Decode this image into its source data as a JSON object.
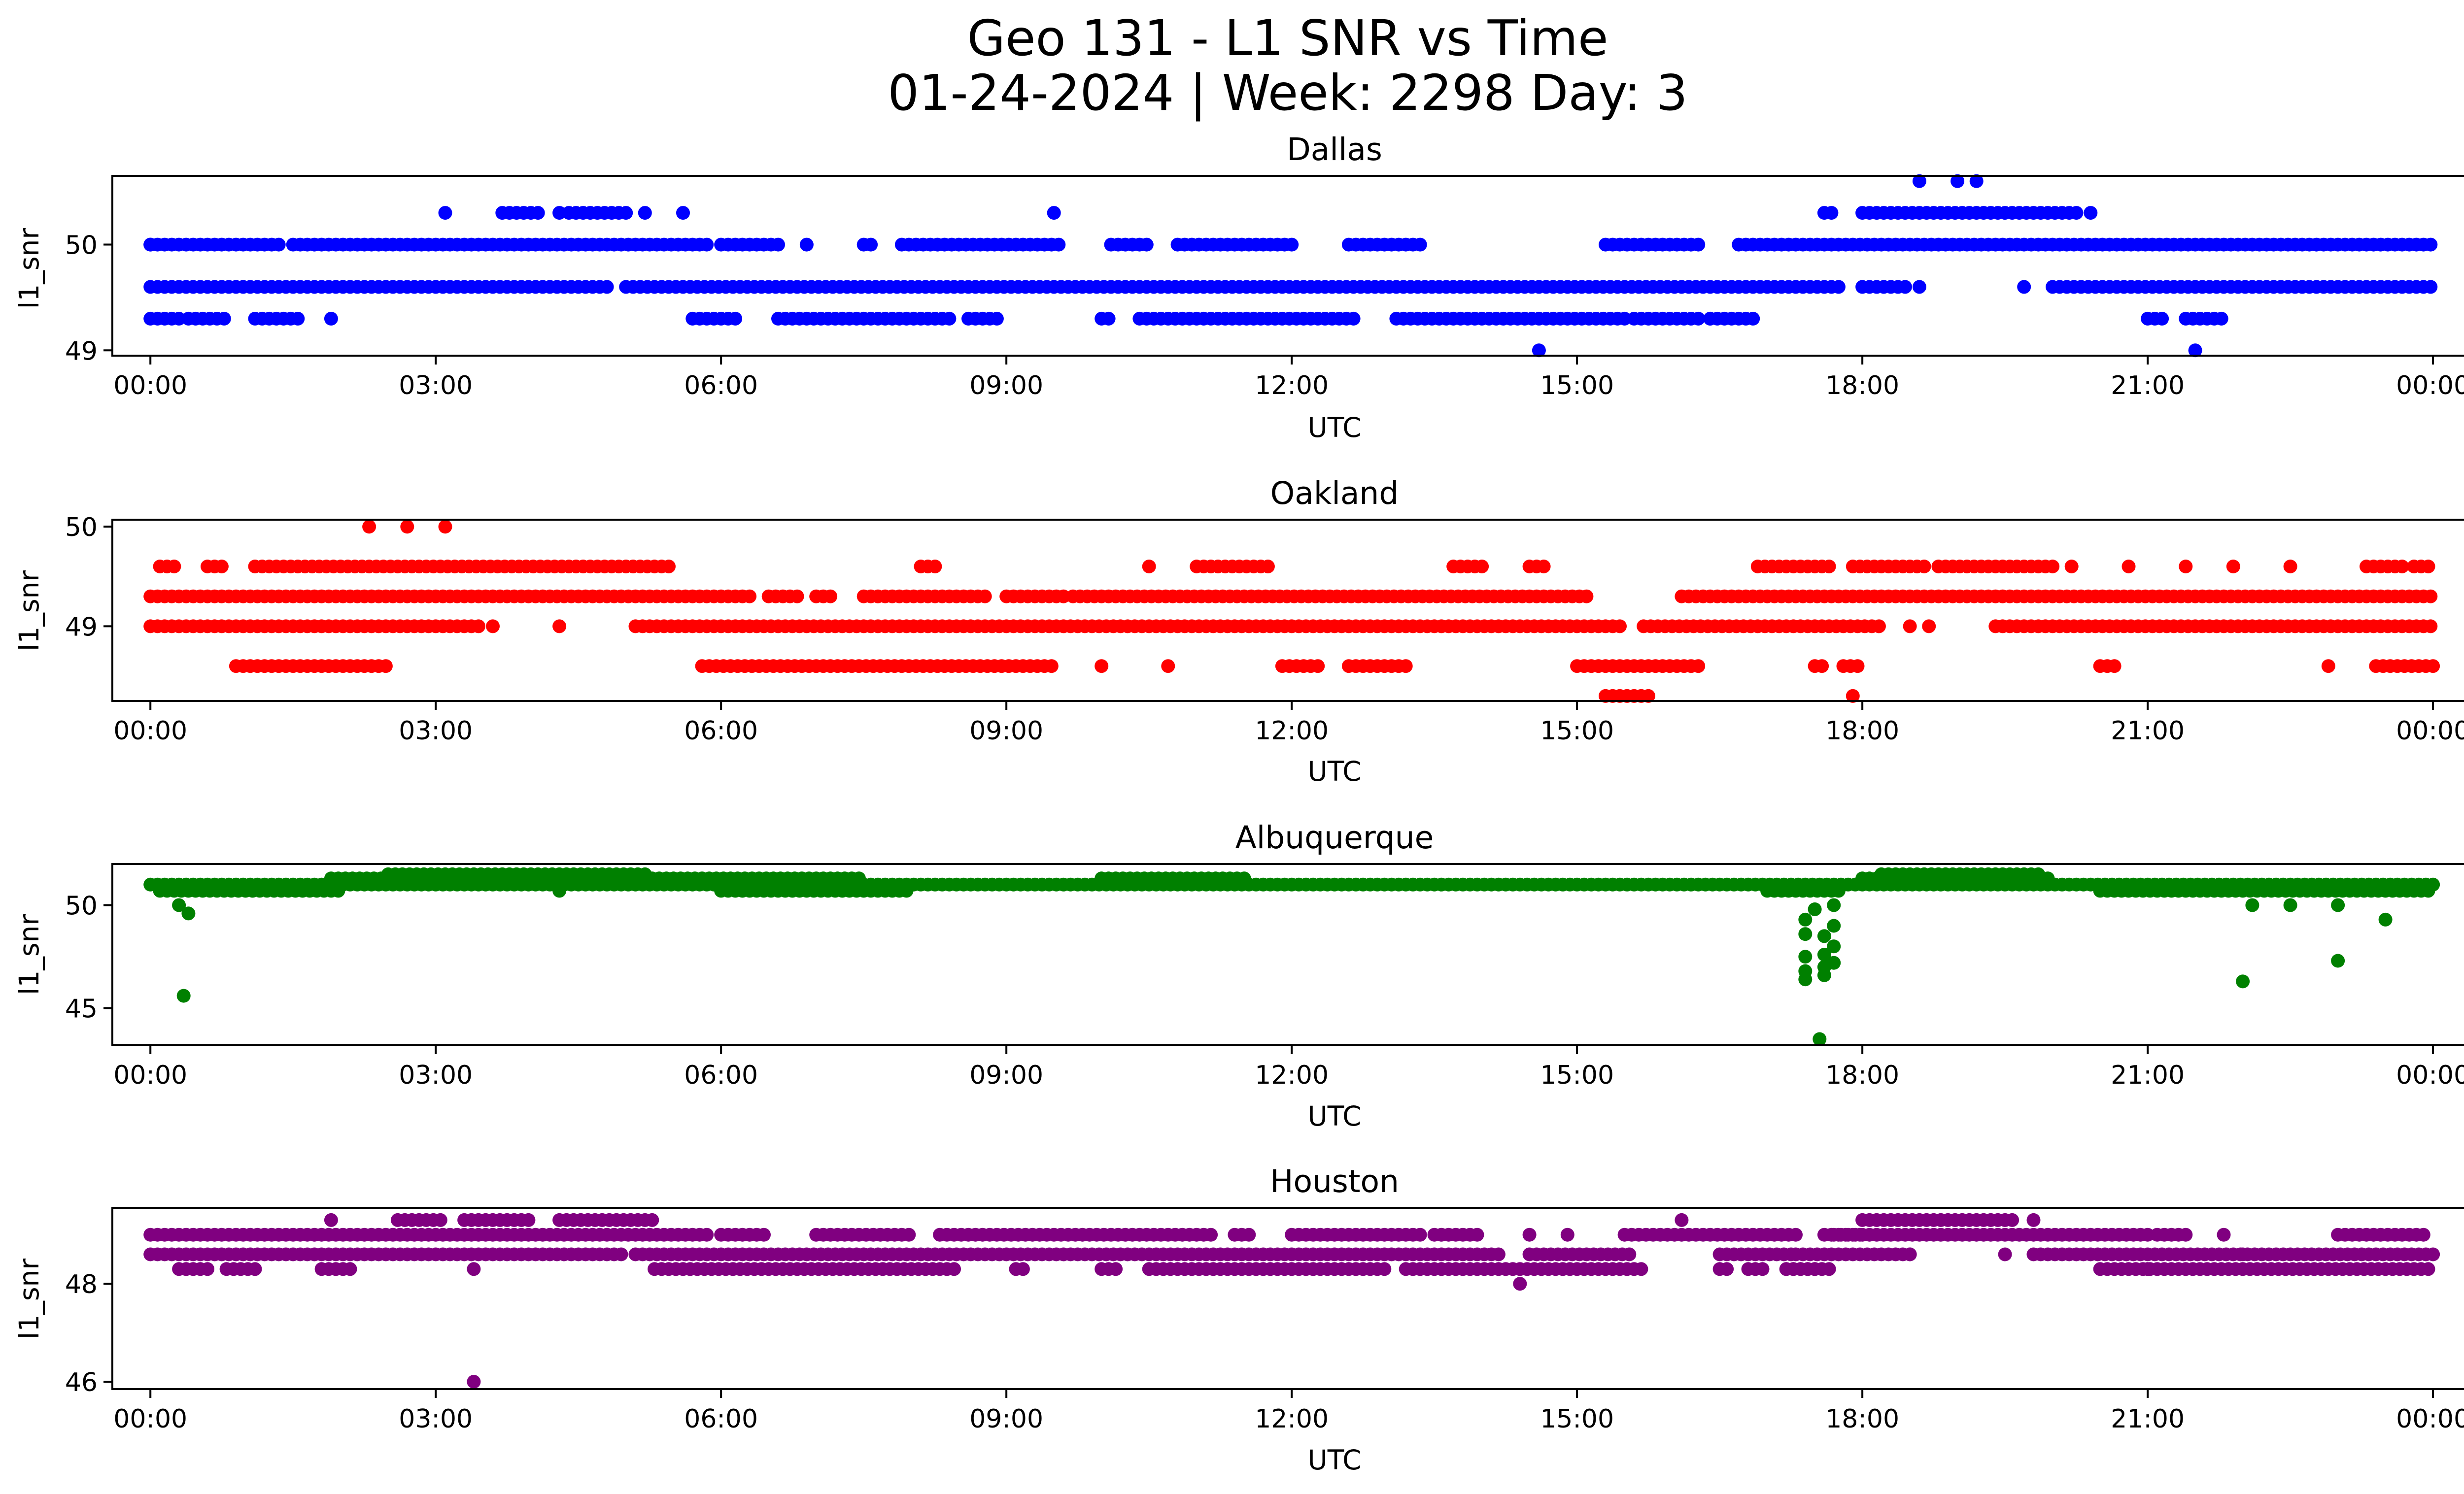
{
  "figure": {
    "title_line1": "Geo 131 - L1 SNR vs Time",
    "title_line2": "01-24-2024 | Week: 2298 Day: 3"
  },
  "chart_data": [
    {
      "type": "scatter",
      "title": "Dallas",
      "xlabel": "UTC",
      "ylabel": "l1_snr",
      "color": "#0000ff",
      "x_unit": "hours (UTC, 2024-01-24)",
      "xlim": [
        -0.4,
        25.3
      ],
      "ylim": [
        48.95,
        50.65
      ],
      "x_ticks": [
        0,
        3,
        6,
        9,
        12,
        15,
        18,
        21,
        24
      ],
      "x_tick_labels": [
        "00:00",
        "03:00",
        "06:00",
        "09:00",
        "12:00",
        "15:00",
        "18:00",
        "21:00",
        "00:00"
      ],
      "y_ticks": [
        49,
        50
      ],
      "y_tick_labels": [
        "49",
        "50"
      ],
      "bands": [
        {
          "y": 50.0,
          "ranges": [
            [
              0.0,
              0.85
            ],
            [
              0.9,
              1.4
            ],
            [
              1.5,
              5.9
            ],
            [
              6.0,
              6.6
            ],
            [
              7.5,
              7.6
            ],
            [
              7.9,
              9.6
            ],
            [
              10.1,
              10.5
            ],
            [
              10.8,
              12.0
            ],
            [
              12.6,
              13.4
            ],
            [
              15.3,
              16.3
            ],
            [
              16.7,
              24.0
            ]
          ]
        },
        {
          "y": 49.6,
          "ranges": [
            [
              0.0,
              4.8
            ],
            [
              5.0,
              17.8
            ],
            [
              18.0,
              18.5
            ],
            [
              20.0,
              24.0
            ]
          ]
        },
        {
          "y": 49.3,
          "ranges": [
            [
              0.0,
              0.3
            ],
            [
              0.4,
              0.8
            ],
            [
              1.1,
              1.6
            ],
            [
              5.7,
              6.2
            ],
            [
              6.6,
              8.4
            ],
            [
              8.6,
              8.9
            ],
            [
              10.0,
              10.1
            ],
            [
              10.4,
              12.7
            ],
            [
              13.1,
              15.5
            ],
            [
              15.6,
              16.3
            ],
            [
              16.4,
              16.9
            ],
            [
              21.0,
              21.2
            ],
            [
              21.4,
              21.8
            ]
          ]
        },
        {
          "y": 50.3,
          "ranges": [
            [
              3.7,
              4.1
            ],
            [
              4.4,
              5.0
            ],
            [
              17.6,
              17.7
            ],
            [
              18.0,
              20.3
            ]
          ]
        }
      ],
      "points": [
        [
          0.0,
          50.0
        ],
        [
          1.9,
          49.3
        ],
        [
          3.1,
          50.3
        ],
        [
          4.3,
          50.3
        ],
        [
          5.2,
          50.3
        ],
        [
          5.6,
          50.3
        ],
        [
          6.9,
          50.0
        ],
        [
          9.5,
          50.3
        ],
        [
          14.6,
          49.0
        ],
        [
          16.4,
          49.3
        ],
        [
          18.6,
          49.6
        ],
        [
          18.6,
          50.6
        ],
        [
          19.0,
          50.6
        ],
        [
          19.2,
          50.6
        ],
        [
          20.4,
          50.3
        ],
        [
          19.7,
          49.6
        ],
        [
          21.5,
          49.0
        ]
      ]
    },
    {
      "type": "scatter",
      "title": "Oakland",
      "xlabel": "UTC",
      "ylabel": "l1_snr",
      "color": "#ff0000",
      "x_unit": "hours (UTC, 2024-01-24)",
      "xlim": [
        -0.4,
        25.3
      ],
      "ylim": [
        48.25,
        50.07
      ],
      "x_ticks": [
        0,
        3,
        6,
        9,
        12,
        15,
        18,
        21,
        24
      ],
      "x_tick_labels": [
        "00:00",
        "03:00",
        "06:00",
        "09:00",
        "12:00",
        "15:00",
        "18:00",
        "21:00",
        "00:00"
      ],
      "y_ticks": [
        49,
        50
      ],
      "y_tick_labels": [
        "49",
        "50"
      ],
      "bands": [
        {
          "y": 49.3,
          "ranges": [
            [
              0.0,
              6.3
            ],
            [
              6.5,
              6.8
            ],
            [
              7.0,
              7.2
            ],
            [
              7.5,
              8.8
            ],
            [
              9.0,
              9.6
            ],
            [
              9.7,
              15.1
            ],
            [
              16.1,
              24.0
            ]
          ]
        },
        {
          "y": 49.0,
          "ranges": [
            [
              0.0,
              3.5
            ],
            [
              5.1,
              15.5
            ],
            [
              15.7,
              18.2
            ],
            [
              19.4,
              24.0
            ]
          ]
        },
        {
          "y": 49.6,
          "ranges": [
            [
              0.1,
              0.3
            ],
            [
              0.6,
              0.8
            ],
            [
              1.1,
              5.5
            ],
            [
              8.1,
              8.3
            ],
            [
              11.0,
              11.8
            ],
            [
              13.7,
              14.0
            ],
            [
              14.5,
              14.7
            ],
            [
              16.9,
              17.7
            ],
            [
              17.9,
              18.7
            ],
            [
              18.8,
              20.0
            ],
            [
              23.3,
              23.7
            ],
            [
              23.8,
              24.0
            ]
          ]
        },
        {
          "y": 48.6,
          "ranges": [
            [
              0.9,
              2.5
            ],
            [
              5.8,
              9.5
            ],
            [
              11.9,
              12.3
            ],
            [
              12.6,
              13.2
            ],
            [
              15.0,
              16.3
            ],
            [
              17.5,
              17.6
            ],
            [
              17.8,
              18.0
            ],
            [
              20.5,
              20.7
            ],
            [
              23.4,
              24.0
            ]
          ]
        },
        {
          "y": 48.3,
          "ranges": [
            [
              15.3,
              15.8
            ]
          ]
        }
      ],
      "points": [
        [
          2.3,
          50.0
        ],
        [
          2.7,
          50.0
        ],
        [
          3.1,
          50.0
        ],
        [
          4.3,
          49.0
        ],
        [
          3.6,
          49.0
        ],
        [
          10.5,
          49.6
        ],
        [
          10.0,
          48.6
        ],
        [
          10.7,
          48.6
        ],
        [
          17.9,
          48.3
        ],
        [
          18.5,
          49.0
        ],
        [
          18.7,
          49.0
        ],
        [
          20.2,
          49.6
        ],
        [
          20.8,
          49.6
        ],
        [
          21.4,
          49.6
        ],
        [
          21.9,
          49.6
        ],
        [
          22.5,
          49.6
        ],
        [
          22.9,
          48.6
        ]
      ]
    },
    {
      "type": "scatter",
      "title": "Albuquerque",
      "xlabel": "UTC",
      "ylabel": "l1_snr",
      "color": "#008000",
      "x_unit": "hours (UTC, 2024-01-24)",
      "xlim": [
        -0.4,
        25.3
      ],
      "ylim": [
        43.2,
        52.0
      ],
      "x_ticks": [
        0,
        3,
        6,
        9,
        12,
        15,
        18,
        21,
        24
      ],
      "x_tick_labels": [
        "00:00",
        "03:00",
        "06:00",
        "09:00",
        "12:00",
        "15:00",
        "18:00",
        "21:00",
        "00:00"
      ],
      "y_ticks": [
        45,
        50
      ],
      "y_tick_labels": [
        "45",
        "50"
      ],
      "bands": [
        {
          "y": 50.7,
          "ranges": [
            [
              0.1,
              2.0
            ],
            [
              6.0,
              8.0
            ],
            [
              17.0,
              17.8
            ],
            [
              20.5,
              24.0
            ]
          ]
        },
        {
          "y": 51.0,
          "ranges": [
            [
              0.0,
              24.0
            ]
          ]
        },
        {
          "y": 51.3,
          "ranges": [
            [
              1.9,
              7.5
            ],
            [
              10.0,
              11.5
            ],
            [
              18.0,
              20.0
            ]
          ]
        },
        {
          "y": 51.5,
          "ranges": [
            [
              2.5,
              5.2
            ],
            [
              18.2,
              19.9
            ]
          ]
        }
      ],
      "points": [
        [
          0.3,
          50.0
        ],
        [
          0.4,
          49.6
        ],
        [
          0.35,
          45.6
        ],
        [
          4.3,
          50.7
        ],
        [
          17.4,
          49.3
        ],
        [
          17.4,
          48.6
        ],
        [
          17.4,
          47.5
        ],
        [
          17.4,
          46.8
        ],
        [
          17.4,
          46.4
        ],
        [
          17.5,
          49.8
        ],
        [
          17.6,
          48.5
        ],
        [
          17.6,
          47.6
        ],
        [
          17.6,
          47.0
        ],
        [
          17.6,
          46.6
        ],
        [
          17.55,
          43.5
        ],
        [
          17.7,
          48.0
        ],
        [
          17.7,
          49.0
        ],
        [
          17.7,
          50.0
        ],
        [
          17.7,
          47.2
        ],
        [
          22.0,
          46.3
        ],
        [
          22.1,
          50.0
        ],
        [
          23.0,
          47.3
        ],
        [
          23.5,
          49.3
        ],
        [
          23.0,
          50.0
        ],
        [
          22.5,
          50.0
        ]
      ]
    },
    {
      "type": "scatter",
      "title": "Houston",
      "xlabel": "UTC",
      "ylabel": "l1_snr",
      "color": "#800080",
      "x_unit": "hours (UTC, 2024-01-24)",
      "xlim": [
        -0.4,
        25.3
      ],
      "ylim": [
        45.85,
        49.55
      ],
      "x_ticks": [
        0,
        3,
        6,
        9,
        12,
        15,
        18,
        21,
        24
      ],
      "x_tick_labels": [
        "00:00",
        "03:00",
        "06:00",
        "09:00",
        "12:00",
        "15:00",
        "18:00",
        "21:00",
        "00:00"
      ],
      "y_ticks": [
        46,
        48
      ],
      "y_tick_labels": [
        "46",
        "48"
      ],
      "bands": [
        {
          "y": 49.0,
          "ranges": [
            [
              0.0,
              5.9
            ],
            [
              6.0,
              6.5
            ],
            [
              7.0,
              8.0
            ],
            [
              8.3,
              11.2
            ],
            [
              11.4,
              11.6
            ],
            [
              12.0,
              13.4
            ],
            [
              13.5,
              14.0
            ],
            [
              15.5,
              17.3
            ],
            [
              17.6,
              18.0
            ],
            [
              17.7,
              21.0
            ],
            [
              21.1,
              21.4
            ],
            [
              23.0,
              23.9
            ]
          ]
        },
        {
          "y": 48.6,
          "ranges": [
            [
              0.0,
              5.0
            ],
            [
              5.1,
              14.2
            ],
            [
              14.5,
              15.6
            ],
            [
              16.5,
              17.3
            ],
            [
              17.3,
              18.5
            ],
            [
              19.8,
              24.0
            ]
          ]
        },
        {
          "y": 48.3,
          "ranges": [
            [
              0.3,
              0.6
            ],
            [
              0.8,
              1.1
            ],
            [
              1.8,
              2.1
            ],
            [
              5.3,
              8.5
            ],
            [
              9.1,
              9.2
            ],
            [
              10.0,
              10.2
            ],
            [
              10.5,
              13.0
            ],
            [
              13.2,
              15.7
            ],
            [
              16.5,
              16.6
            ],
            [
              16.8,
              17.0
            ],
            [
              17.2,
              17.5
            ],
            [
              17.2,
              17.7
            ],
            [
              20.5,
              24.0
            ]
          ]
        },
        {
          "y": 49.3,
          "ranges": [
            [
              2.6,
              3.1
            ],
            [
              3.3,
              4.0
            ],
            [
              4.3,
              5.3
            ],
            [
              18.0,
              19.6
            ]
          ]
        }
      ],
      "points": [
        [
          1.9,
          49.3
        ],
        [
          3.4,
          48.3
        ],
        [
          3.4,
          46.0
        ],
        [
          14.4,
          48.0
        ],
        [
          14.9,
          49.0
        ],
        [
          14.5,
          49.0
        ],
        [
          16.1,
          49.3
        ],
        [
          18.5,
          48.6
        ],
        [
          19.8,
          49.3
        ],
        [
          19.5,
          48.6
        ],
        [
          21.0,
          48.3
        ],
        [
          21.8,
          49.0
        ],
        [
          22.0,
          48.6
        ]
      ]
    }
  ]
}
